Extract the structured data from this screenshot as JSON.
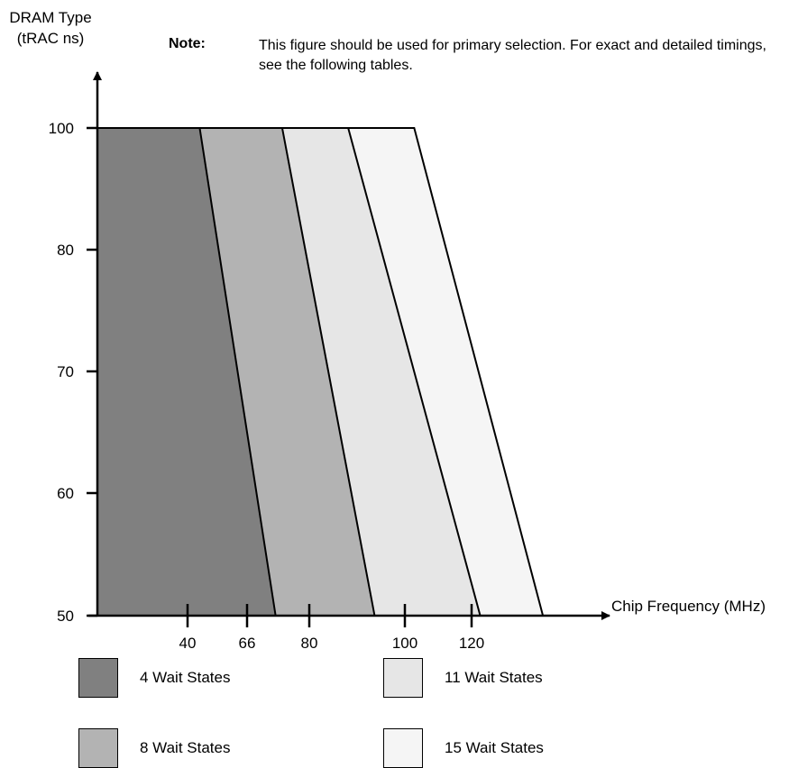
{
  "chart_data": {
    "type": "area",
    "title": "",
    "ylabel": "DRAM Type (tRAC ns)",
    "xlabel": "Chip Frequency (MHz)",
    "note_label": "Note:",
    "note_text": "This figure should be used for primary selection. For exact and detailed timings, see the following tables.",
    "y_ticks": [
      "100",
      "80",
      "70",
      "60",
      "50"
    ],
    "x_ticks": [
      "40",
      "66",
      "80",
      "100",
      "120"
    ],
    "regions": [
      {
        "name": "4 Wait States",
        "color": "#808080",
        "boundary_at_100ns": 31,
        "boundary_at_50ns": 54
      },
      {
        "name": "8 Wait States",
        "color": "#b3b3b3",
        "boundary_at_100ns": 56,
        "boundary_at_50ns": 84
      },
      {
        "name": "11 Wait States",
        "color": "#e6e6e6",
        "boundary_at_100ns": 76,
        "boundary_at_50ns": 116
      },
      {
        "name": "15 Wait States",
        "color": "#f5f5f5",
        "boundary_at_100ns": 96,
        "boundary_at_50ns": 135
      }
    ],
    "grid": false,
    "legend_placement": "bottom"
  }
}
